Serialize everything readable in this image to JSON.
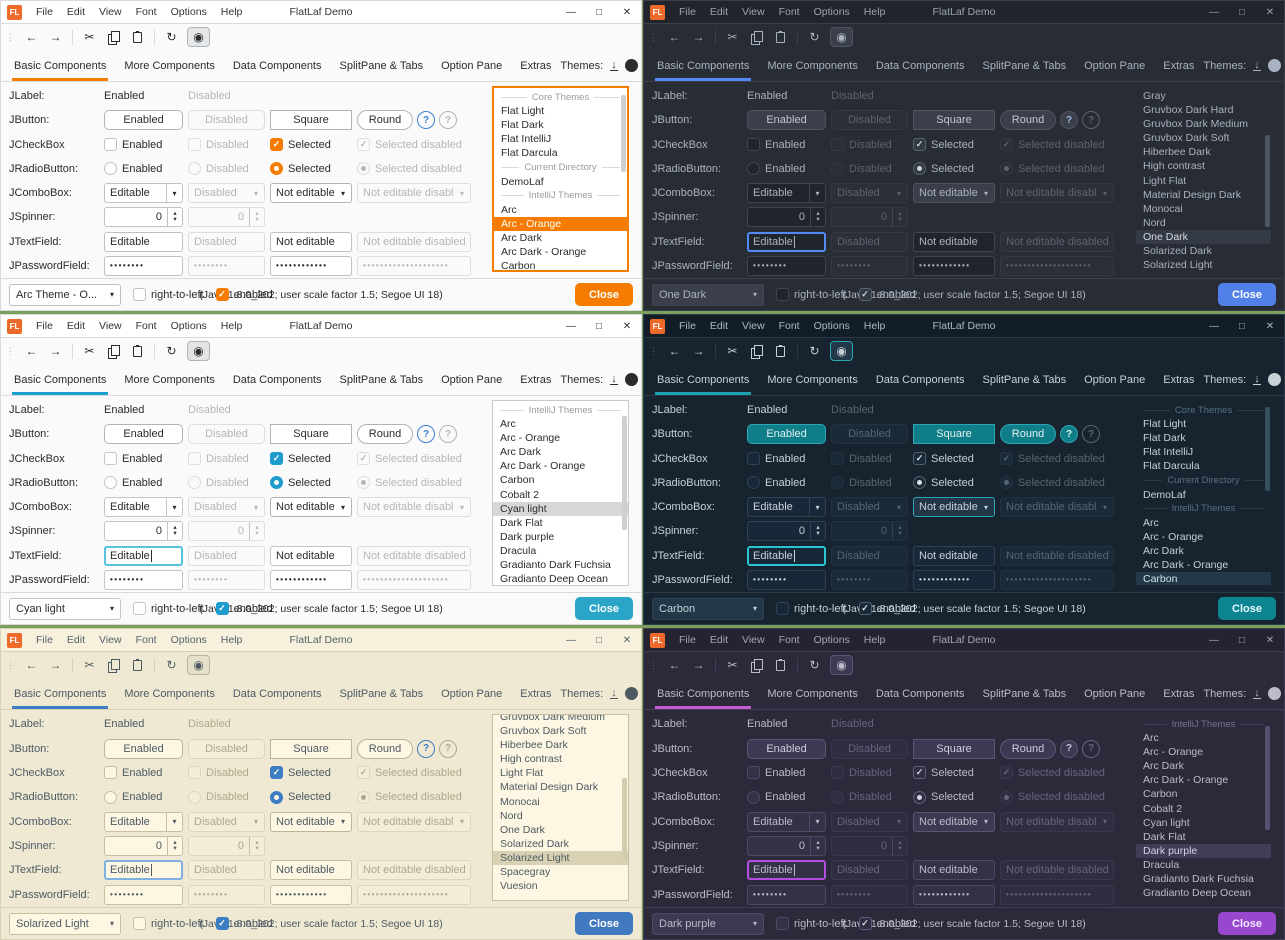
{
  "shared": {
    "logo_text": "FL",
    "window_title": "FlatLaf Demo",
    "menu": [
      "File",
      "Edit",
      "View",
      "Font",
      "Options",
      "Help"
    ],
    "window_controls": [
      {
        "name": "minimize",
        "glyph": "—"
      },
      {
        "name": "maximize",
        "glyph": "□"
      },
      {
        "name": "close",
        "glyph": "✕"
      }
    ],
    "toolbar": [
      {
        "name": "back-icon",
        "glyph": "←"
      },
      {
        "name": "forward-icon",
        "glyph": "→"
      },
      {
        "name": "separator"
      },
      {
        "name": "cut-icon",
        "glyph": "✂"
      },
      {
        "name": "copy-icon",
        "css": "copy"
      },
      {
        "name": "paste-icon",
        "css": "paste"
      },
      {
        "name": "separator"
      },
      {
        "name": "refresh-icon",
        "glyph": "↻"
      },
      {
        "name": "show-icon",
        "glyph": "◉",
        "toggled": true
      }
    ],
    "tabs": [
      "Basic Components",
      "More Components",
      "Data Components",
      "SplitPane & Tabs",
      "Option Pane",
      "Extras"
    ],
    "active_tab": "Basic Components",
    "themes_label": "Themes:",
    "filter_value": "all",
    "glyphs": {
      "grip": "⋮",
      "check": "✓",
      "combo_arrow": "▾",
      "up": "▴",
      "down": "▾",
      "download": "↓"
    },
    "rows": [
      {
        "label": "JLabel:",
        "cells": [
          {
            "type": "label",
            "text": "Enabled"
          },
          {
            "type": "label",
            "text": "Disabled",
            "disabled": true
          }
        ]
      },
      {
        "label": "JButton:",
        "cells": [
          {
            "type": "button",
            "text": "Enabled"
          },
          {
            "type": "button",
            "text": "Disabled",
            "disabled": true
          },
          {
            "type": "button",
            "text": "Square",
            "shape": "square"
          },
          {
            "type": "round-group",
            "text": "Round",
            "help": "?",
            "help_disabled": "?"
          }
        ]
      },
      {
        "label": "JCheckBox",
        "cells": [
          {
            "type": "checkbox",
            "text": "Enabled"
          },
          {
            "type": "checkbox",
            "text": "Disabled",
            "disabled": true
          },
          {
            "type": "checkbox",
            "text": "Selected",
            "checked": true
          },
          {
            "type": "checkbox",
            "text": "Selected disabled",
            "checked": true,
            "disabled": true
          }
        ]
      },
      {
        "label": "JRadioButton:",
        "cells": [
          {
            "type": "radio",
            "text": "Enabled"
          },
          {
            "type": "radio",
            "text": "Disabled",
            "disabled": true
          },
          {
            "type": "radio",
            "text": "Selected",
            "checked": true
          },
          {
            "type": "radio",
            "text": "Selected disabled",
            "checked": true,
            "disabled": true
          }
        ]
      },
      {
        "label": "JComboBox:",
        "cells": [
          {
            "type": "combo",
            "text": "Editable",
            "editable": true
          },
          {
            "type": "combo",
            "text": "Disabled",
            "disabled": true
          },
          {
            "type": "combo",
            "text": "Not editable"
          },
          {
            "type": "combo",
            "text": "Not editable disabled",
            "disabled": true
          }
        ]
      },
      {
        "label": "JSpinner:",
        "cells": [
          {
            "type": "spinner",
            "text": "0"
          },
          {
            "type": "spinner",
            "text": "0",
            "disabled": true
          }
        ]
      },
      {
        "label": "JTextField:",
        "cells": [
          {
            "type": "field",
            "text": "Editable",
            "focusable": true
          },
          {
            "type": "field",
            "text": "Disabled",
            "disabled": true
          },
          {
            "type": "field",
            "text": "Not editable"
          },
          {
            "type": "field",
            "text": "Not editable disabled",
            "disabled": true
          }
        ]
      },
      {
        "label": "JPasswordField:",
        "cells": [
          {
            "type": "password",
            "text": "••••••••"
          },
          {
            "type": "password",
            "text": "••••••••",
            "disabled": true
          },
          {
            "type": "password",
            "text": "••••••••••••"
          },
          {
            "type": "password",
            "text": "••••••••••••••••••••",
            "disabled": true
          }
        ]
      }
    ],
    "rtl_label": "right-to-left",
    "enabled_label": "enabled",
    "status": "(Java 1.8.0_202;  user scale factor 1.5; Segoe UI 18)",
    "close_label": "Close"
  },
  "windows": [
    {
      "name": "arc-orange",
      "selected_theme": "Arc - Orange",
      "theme_combo_value": "Arc Theme - O...",
      "focus": "list",
      "palette": {
        "bg": "#fafafa",
        "bar": "#ffffff",
        "titlefg": "#333333",
        "fg": "#2b2b2b",
        "dim": "#b6b6b6",
        "line": "#dadada",
        "field": "#ffffff",
        "fieldborder": "#bcc2c8",
        "btn": "#ffffff",
        "btnborder": "#aeb6bd",
        "btnfg": "#2b2b2b",
        "noteditbg": "#ffffff",
        "accent": "#f57c00",
        "underline": "#f57c00",
        "listbg": "#ffffff",
        "listborder": "#f57c00",
        "sel": "#f57c00",
        "selfg": "#ffffff",
        "close": "#f57c00",
        "closefg": "#ffffff",
        "sepfg": "#9b9b9b",
        "thumb": "#cfcfcf",
        "checkfill": "#f57c00",
        "checkmark": "#ffffff",
        "checkborder": "#f57c00",
        "disborder": "#dddddd",
        "disbg": "#fafafa",
        "focus": "#f57c00",
        "help": "#3f7fd6",
        "togglebg": "#e4e6e7"
      },
      "list": {
        "items": [
          {
            "type": "separator",
            "label": "Core Themes"
          },
          {
            "type": "item",
            "label": "Flat Light"
          },
          {
            "type": "item",
            "label": "Flat Dark"
          },
          {
            "type": "item",
            "label": "Flat IntelliJ"
          },
          {
            "type": "item",
            "label": "Flat Darcula"
          },
          {
            "type": "separator",
            "label": "Current Directory"
          },
          {
            "type": "item",
            "label": "DemoLaf"
          },
          {
            "type": "separator",
            "label": "IntelliJ Themes"
          },
          {
            "type": "item",
            "label": "Arc"
          },
          {
            "type": "item",
            "label": "Arc - Orange",
            "selected": true
          },
          {
            "type": "item",
            "label": "Arc Dark"
          },
          {
            "type": "item",
            "label": "Arc Dark - Orange"
          },
          {
            "type": "item",
            "label": "Carbon"
          }
        ],
        "scrollbar": {
          "top_pct": 4,
          "height_pct": 42
        }
      }
    },
    {
      "name": "one-dark",
      "selected_theme": "One Dark",
      "theme_combo_value": "One Dark",
      "focus": "textfield",
      "palette": {
        "bg": "#282c34",
        "bar": "#21252b",
        "titlefg": "#9aa3b2",
        "fg": "#a9b2c0",
        "dim": "#5b6370",
        "line": "#3a3f48",
        "field": "#21252b",
        "fieldborder": "#3f4550",
        "btn": "#3a3f4b",
        "btnborder": "#4d5462",
        "btnfg": "#c0c7d2",
        "noteditbg": "#3a3f4b",
        "accent": "#528af8",
        "underline": "#528af8",
        "listbg": "#282c34",
        "listborder": "#282c34",
        "sel": "#353b46",
        "selfg": "#d4d8de",
        "close": "#5181e8",
        "closefg": "#ffffff",
        "sepfg": "#6b7380",
        "thumb": "#4d5462",
        "checkfill": "#343a44",
        "checkmark": "#cdd3dc",
        "checkborder": "#5a626e",
        "disborder": "#343944",
        "disbg": "#2b2f38",
        "focus": "#528af8",
        "help": "#9fb6e8",
        "helpbg": "#3a3f4b",
        "helpborder": "#4d5462",
        "togglebg": "#3a3f4b"
      },
      "list": {
        "items": [
          {
            "type": "item",
            "label": "Gray"
          },
          {
            "type": "item",
            "label": "Gruvbox Dark Hard"
          },
          {
            "type": "item",
            "label": "Gruvbox Dark Medium"
          },
          {
            "type": "item",
            "label": "Gruvbox Dark Soft"
          },
          {
            "type": "item",
            "label": "Hiberbee Dark"
          },
          {
            "type": "item",
            "label": "High contrast"
          },
          {
            "type": "item",
            "label": "Light Flat"
          },
          {
            "type": "item",
            "label": "Material Design Dark"
          },
          {
            "type": "item",
            "label": "Monocai"
          },
          {
            "type": "item",
            "label": "Nord"
          },
          {
            "type": "item",
            "label": "One Dark",
            "selected": true
          },
          {
            "type": "item",
            "label": "Solarized Dark"
          },
          {
            "type": "item",
            "label": "Solarized Light"
          }
        ],
        "scrollbar": {
          "top_pct": 26,
          "height_pct": 50
        }
      }
    },
    {
      "name": "cyan-light",
      "selected_theme": "Cyan light",
      "theme_combo_value": "Cyan light",
      "focus": "textfield",
      "palette": {
        "bg": "#fafafa",
        "bar": "#ffffff",
        "titlefg": "#333333",
        "fg": "#2b2b2b",
        "dim": "#b6b6b6",
        "line": "#dadada",
        "field": "#ffffff",
        "fieldborder": "#c5c5c5",
        "btn": "#ffffff",
        "btnborder": "#b3b3b3",
        "btnfg": "#2b2b2b",
        "noteditbg": "#ffffff",
        "accent": "#1b9ecb",
        "underline": "#1b9ecb",
        "listbg": "#ffffff",
        "listborder": "#c9c9c9",
        "sel": "#d7d7d7",
        "selfg": "#2b2b2b",
        "close": "#2aa5c8",
        "closefg": "#ffffff",
        "sepfg": "#9b9b9b",
        "thumb": "#cfcfcf",
        "checkfill": "#1e9ccc",
        "checkmark": "#ffffff",
        "checkborder": "#1e9ccc",
        "disborder": "#dddddd",
        "disbg": "#fafafa",
        "focus": "#56c4dd",
        "help": "#3f7fd6",
        "togglebg": "#e4e4e4"
      },
      "list": {
        "items": [
          {
            "type": "separator",
            "label": "IntelliJ Themes"
          },
          {
            "type": "item",
            "label": "Arc"
          },
          {
            "type": "item",
            "label": "Arc - Orange"
          },
          {
            "type": "item",
            "label": "Arc Dark"
          },
          {
            "type": "item",
            "label": "Arc Dark - Orange"
          },
          {
            "type": "item",
            "label": "Carbon"
          },
          {
            "type": "item",
            "label": "Cobalt 2"
          },
          {
            "type": "item",
            "label": "Cyan light",
            "selected": true
          },
          {
            "type": "item",
            "label": "Dark Flat"
          },
          {
            "type": "item",
            "label": "Dark purple"
          },
          {
            "type": "item",
            "label": "Dracula"
          },
          {
            "type": "item",
            "label": "Gradianto Dark Fuchsia"
          },
          {
            "type": "item",
            "label": "Gradianto Deep Ocean"
          }
        ],
        "scrollbar": {
          "top_pct": 8,
          "height_pct": 62
        }
      }
    },
    {
      "name": "carbon",
      "selected_theme": "Carbon",
      "theme_combo_value": "Carbon",
      "focus": "textfield",
      "palette": {
        "bg": "#17242f",
        "bar": "#121d27",
        "titlefg": "#a9bac3",
        "fg": "#c7d1d6",
        "dim": "#54676f",
        "line": "#293a46",
        "field": "#192838",
        "fieldborder": "#2f4356",
        "btn": "#0f7e89",
        "btnborder": "#2ba6b3",
        "btnfg": "#e3f0f1",
        "noteditbg": "#223747",
        "accent": "#25a6b3",
        "underline": "#1fa3b0",
        "listbg": "#17242f",
        "listborder": "#17242f",
        "sel": "#22394a",
        "selfg": "#d7e2e6",
        "close": "#0c8492",
        "closefg": "#e8fbfd",
        "sepfg": "#56707e",
        "thumb": "#37505f",
        "checkfill": "#1a2936",
        "checkmark": "#dbe4e8",
        "checkborder": "#4e626e",
        "disborder": "#223340",
        "disbg": "#1b2a37",
        "focus": "#2bc4d1",
        "help": "#dff3f4",
        "helpbg": "#0f7e89",
        "helpborder": "#2ba6b3",
        "togglebg": "#223747"
      },
      "list": {
        "items": [
          {
            "type": "separator",
            "label": "Core Themes"
          },
          {
            "type": "item",
            "label": "Flat Light"
          },
          {
            "type": "item",
            "label": "Flat Dark"
          },
          {
            "type": "item",
            "label": "Flat IntelliJ"
          },
          {
            "type": "item",
            "label": "Flat Darcula"
          },
          {
            "type": "separator",
            "label": "Current Directory"
          },
          {
            "type": "item",
            "label": "DemoLaf"
          },
          {
            "type": "separator",
            "label": "IntelliJ Themes"
          },
          {
            "type": "item",
            "label": "Arc"
          },
          {
            "type": "item",
            "label": "Arc - Orange"
          },
          {
            "type": "item",
            "label": "Arc Dark"
          },
          {
            "type": "item",
            "label": "Arc Dark - Orange"
          },
          {
            "type": "item",
            "label": "Carbon",
            "selected": true
          }
        ],
        "scrollbar": {
          "top_pct": 3,
          "height_pct": 46
        }
      }
    },
    {
      "name": "solarized-light",
      "selected_theme": "Solarized Light",
      "theme_combo_value": "Solarized Light",
      "focus": "textfield",
      "palette": {
        "bg": "#efe9d4",
        "bar": "#f6f0dd",
        "titlefg": "#55626a",
        "fg": "#4d5a62",
        "dim": "#b0a88c",
        "line": "#d8d1b6",
        "field": "#fdf6e3",
        "fieldborder": "#c6bfa2",
        "btn": "#fdf6e3",
        "btnborder": "#bcb498",
        "btnfg": "#4d5a62",
        "noteditbg": "#fdf6e3",
        "accent": "#3d7dc4",
        "underline": "#3d7dc4",
        "listbg": "#fdf6e3",
        "listborder": "#c6bfa2",
        "sel": "#d8d1b4",
        "selfg": "#4d5a62",
        "close": "#4079bf",
        "closefg": "#ffffff",
        "sepfg": "#9c957b",
        "thumb": "#d3cbae",
        "checkfill": "#3d7dc4",
        "checkmark": "#fdf6e3",
        "checkborder": "#3d7dc4",
        "disborder": "#ddd6bc",
        "disbg": "#f2ecd9",
        "focus": "#7fb0e0",
        "help": "#3d7dc4",
        "togglebg": "#e6e0ca"
      },
      "list": {
        "items": [
          {
            "type": "item",
            "label": "Gruvbox Dark Medium",
            "clipped": "top"
          },
          {
            "type": "item",
            "label": "Gruvbox Dark Soft"
          },
          {
            "type": "item",
            "label": "Hiberbee Dark"
          },
          {
            "type": "item",
            "label": "High contrast"
          },
          {
            "type": "item",
            "label": "Light Flat"
          },
          {
            "type": "item",
            "label": "Material Design Dark"
          },
          {
            "type": "item",
            "label": "Monocai"
          },
          {
            "type": "item",
            "label": "Nord"
          },
          {
            "type": "item",
            "label": "One Dark"
          },
          {
            "type": "item",
            "label": "Solarized Dark"
          },
          {
            "type": "item",
            "label": "Solarized Light",
            "selected": true
          },
          {
            "type": "item",
            "label": "Spacegray"
          },
          {
            "type": "item",
            "label": "Vuesion"
          },
          {
            "type": "separator",
            "label": ""
          }
        ],
        "scrollbar": {
          "top_pct": 34,
          "height_pct": 44
        }
      }
    },
    {
      "name": "dark-purple",
      "selected_theme": "Dark purple",
      "theme_combo_value": "Dark purple",
      "focus": "textfield",
      "palette": {
        "bg": "#2c2a3a",
        "bar": "#252330",
        "titlefg": "#a8a4b8",
        "fg": "#bdbac9",
        "dim": "#676380",
        "line": "#403c54",
        "field": "#343147",
        "fieldborder": "#4c4866",
        "btn": "#3c3952",
        "btnborder": "#5a5577",
        "btnfg": "#cfccdd",
        "noteditbg": "#3c3952",
        "accent": "#b24fe0",
        "underline": "#c45ed1",
        "listbg": "#2c2a3a",
        "listborder": "#2c2a3a",
        "sel": "#413d59",
        "selfg": "#d6d3e2",
        "close": "#9847cf",
        "closefg": "#f6edff",
        "sepfg": "#767292",
        "thumb": "#535070",
        "checkfill": "#312e42",
        "checkmark": "#d6d3e2",
        "checkborder": "#625d7e",
        "disborder": "#393650",
        "disbg": "#302d40",
        "focus": "#b24fe0",
        "help": "#cfc3e6",
        "helpbg": "#3c3952",
        "helpborder": "#5a5577",
        "togglebg": "#3c3952"
      },
      "list": {
        "items": [
          {
            "type": "separator",
            "label": "IntelliJ Themes"
          },
          {
            "type": "item",
            "label": "Arc"
          },
          {
            "type": "item",
            "label": "Arc - Orange"
          },
          {
            "type": "item",
            "label": "Arc Dark"
          },
          {
            "type": "item",
            "label": "Arc Dark - Orange"
          },
          {
            "type": "item",
            "label": "Carbon"
          },
          {
            "type": "item",
            "label": "Cobalt 2"
          },
          {
            "type": "item",
            "label": "Cyan light"
          },
          {
            "type": "item",
            "label": "Dark Flat"
          },
          {
            "type": "item",
            "label": "Dark purple",
            "selected": true
          },
          {
            "type": "item",
            "label": "Dracula"
          },
          {
            "type": "item",
            "label": "Gradianto Dark Fuchsia"
          },
          {
            "type": "item",
            "label": "Gradianto Deep Ocean"
          }
        ],
        "scrollbar": {
          "top_pct": 6,
          "height_pct": 56
        }
      }
    }
  ]
}
